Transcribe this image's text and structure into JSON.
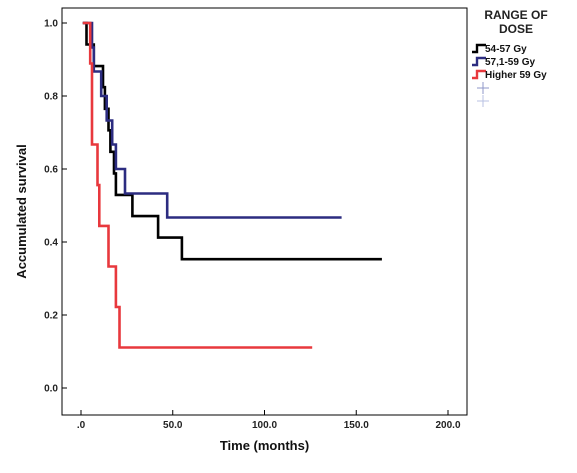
{
  "chart_data": {
    "type": "line",
    "subtype": "kaplan-meier-step",
    "xlabel": "Time (months)",
    "ylabel": "Accumulated survival",
    "xlim": [
      0,
      200
    ],
    "ylim": [
      0,
      1
    ],
    "x_ticks": [
      {
        "value": 0,
        "label": ".0"
      },
      {
        "value": 50,
        "label": "50.0"
      },
      {
        "value": 100,
        "label": "100.0"
      },
      {
        "value": 150,
        "label": "150.0"
      },
      {
        "value": 200,
        "label": "200.0"
      }
    ],
    "y_ticks": [
      {
        "value": 0,
        "label": "0.0"
      },
      {
        "value": 0.2,
        "label": "0.2"
      },
      {
        "value": 0.4,
        "label": "0.4"
      },
      {
        "value": 0.6,
        "label": "0.6"
      },
      {
        "value": 0.8,
        "label": "0.8"
      },
      {
        "value": 1.0,
        "label": "1.0"
      }
    ],
    "grid": false,
    "legend": {
      "title_line1": "RANGE OF",
      "title_line2": "DOSE",
      "placement": "top-right-outside"
    },
    "series": [
      {
        "name": "54-57 Gy",
        "color": "#000000",
        "points": [
          [
            1,
            1.0
          ],
          [
            3,
            1.0
          ],
          [
            3,
            0.941
          ],
          [
            7,
            0.941
          ],
          [
            7,
            0.882
          ],
          [
            12,
            0.882
          ],
          [
            12,
            0.824
          ],
          [
            13,
            0.824
          ],
          [
            13,
            0.765
          ],
          [
            15,
            0.765
          ],
          [
            15,
            0.706
          ],
          [
            16,
            0.706
          ],
          [
            16,
            0.647
          ],
          [
            18,
            0.647
          ],
          [
            18,
            0.588
          ],
          [
            19,
            0.588
          ],
          [
            19,
            0.529
          ],
          [
            28,
            0.529
          ],
          [
            28,
            0.471
          ],
          [
            42,
            0.471
          ],
          [
            42,
            0.412
          ],
          [
            55,
            0.412
          ],
          [
            55,
            0.353
          ],
          [
            164,
            0.353
          ]
        ]
      },
      {
        "name": "57,1-59 Gy",
        "color": "#2c2c80",
        "points": [
          [
            1,
            1.0
          ],
          [
            6,
            1.0
          ],
          [
            6,
            0.933
          ],
          [
            7,
            0.933
          ],
          [
            7,
            0.867
          ],
          [
            11,
            0.867
          ],
          [
            11,
            0.8
          ],
          [
            14,
            0.8
          ],
          [
            14,
            0.733
          ],
          [
            17,
            0.733
          ],
          [
            17,
            0.667
          ],
          [
            19,
            0.667
          ],
          [
            19,
            0.6
          ],
          [
            24,
            0.6
          ],
          [
            24,
            0.533
          ],
          [
            47,
            0.533
          ],
          [
            47,
            0.467
          ],
          [
            142,
            0.467
          ]
        ]
      },
      {
        "name": "Higher 59 Gy",
        "color": "#e8383d",
        "points": [
          [
            1,
            1.0
          ],
          [
            5,
            1.0
          ],
          [
            5,
            0.889
          ],
          [
            6,
            0.889
          ],
          [
            6,
            0.667
          ],
          [
            9,
            0.667
          ],
          [
            9,
            0.556
          ],
          [
            10,
            0.556
          ],
          [
            10,
            0.444
          ],
          [
            15,
            0.444
          ],
          [
            15,
            0.333
          ],
          [
            19,
            0.333
          ],
          [
            19,
            0.222
          ],
          [
            21,
            0.222
          ],
          [
            21,
            0.111
          ],
          [
            126,
            0.111
          ]
        ]
      }
    ],
    "censor_marks": [
      {
        "series": "57,1-59 Gy",
        "x": 142,
        "y": 0.467,
        "shown_in_legend_only": true
      },
      {
        "series": "Higher 59 Gy",
        "x": 126,
        "y": 0.111,
        "shown_in_legend_only": true
      }
    ]
  }
}
